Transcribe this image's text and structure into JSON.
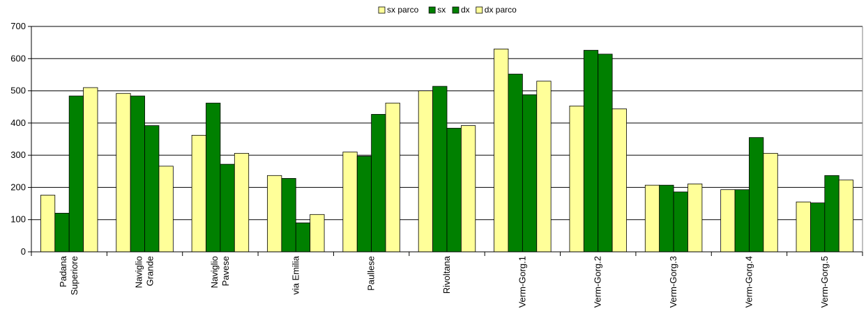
{
  "chart_data": {
    "type": "bar",
    "categories": [
      [
        "Padana",
        "Superiore"
      ],
      [
        "Naviglio",
        "Grande"
      ],
      [
        "Naviglio",
        "Pavese"
      ],
      [
        "via Emilia"
      ],
      [
        "Paullese"
      ],
      [
        "Rivoltana"
      ],
      [
        "Verm-Gorg.1"
      ],
      [
        "Verm-Gorg.2"
      ],
      [
        "Verm-Gorg.3"
      ],
      [
        "Verm-Gorg.4"
      ],
      [
        "Verm-Gorg.5"
      ]
    ],
    "series": [
      {
        "name": "sx parco",
        "color": "#ffff99",
        "values": [
          176,
          492,
          362,
          237,
          310,
          500,
          630,
          453,
          207,
          193,
          155
        ]
      },
      {
        "name": "sx",
        "color": "#008000",
        "values": [
          120,
          484,
          462,
          228,
          297,
          514,
          552,
          626,
          207,
          193,
          152
        ]
      },
      {
        "name": "dx",
        "color": "#008000",
        "values": [
          484,
          392,
          272,
          90,
          427,
          384,
          488,
          614,
          186,
          355,
          237
        ]
      },
      {
        "name": "dx parco",
        "color": "#ffff99",
        "values": [
          510,
          266,
          306,
          116,
          462,
          392,
          530,
          444,
          211,
          306,
          223
        ]
      }
    ],
    "yticks": [
      "0",
      "100",
      "200",
      "300",
      "400",
      "500",
      "600",
      "700"
    ],
    "ylim": [
      0,
      700
    ],
    "grid": true,
    "legend": "top-center"
  }
}
